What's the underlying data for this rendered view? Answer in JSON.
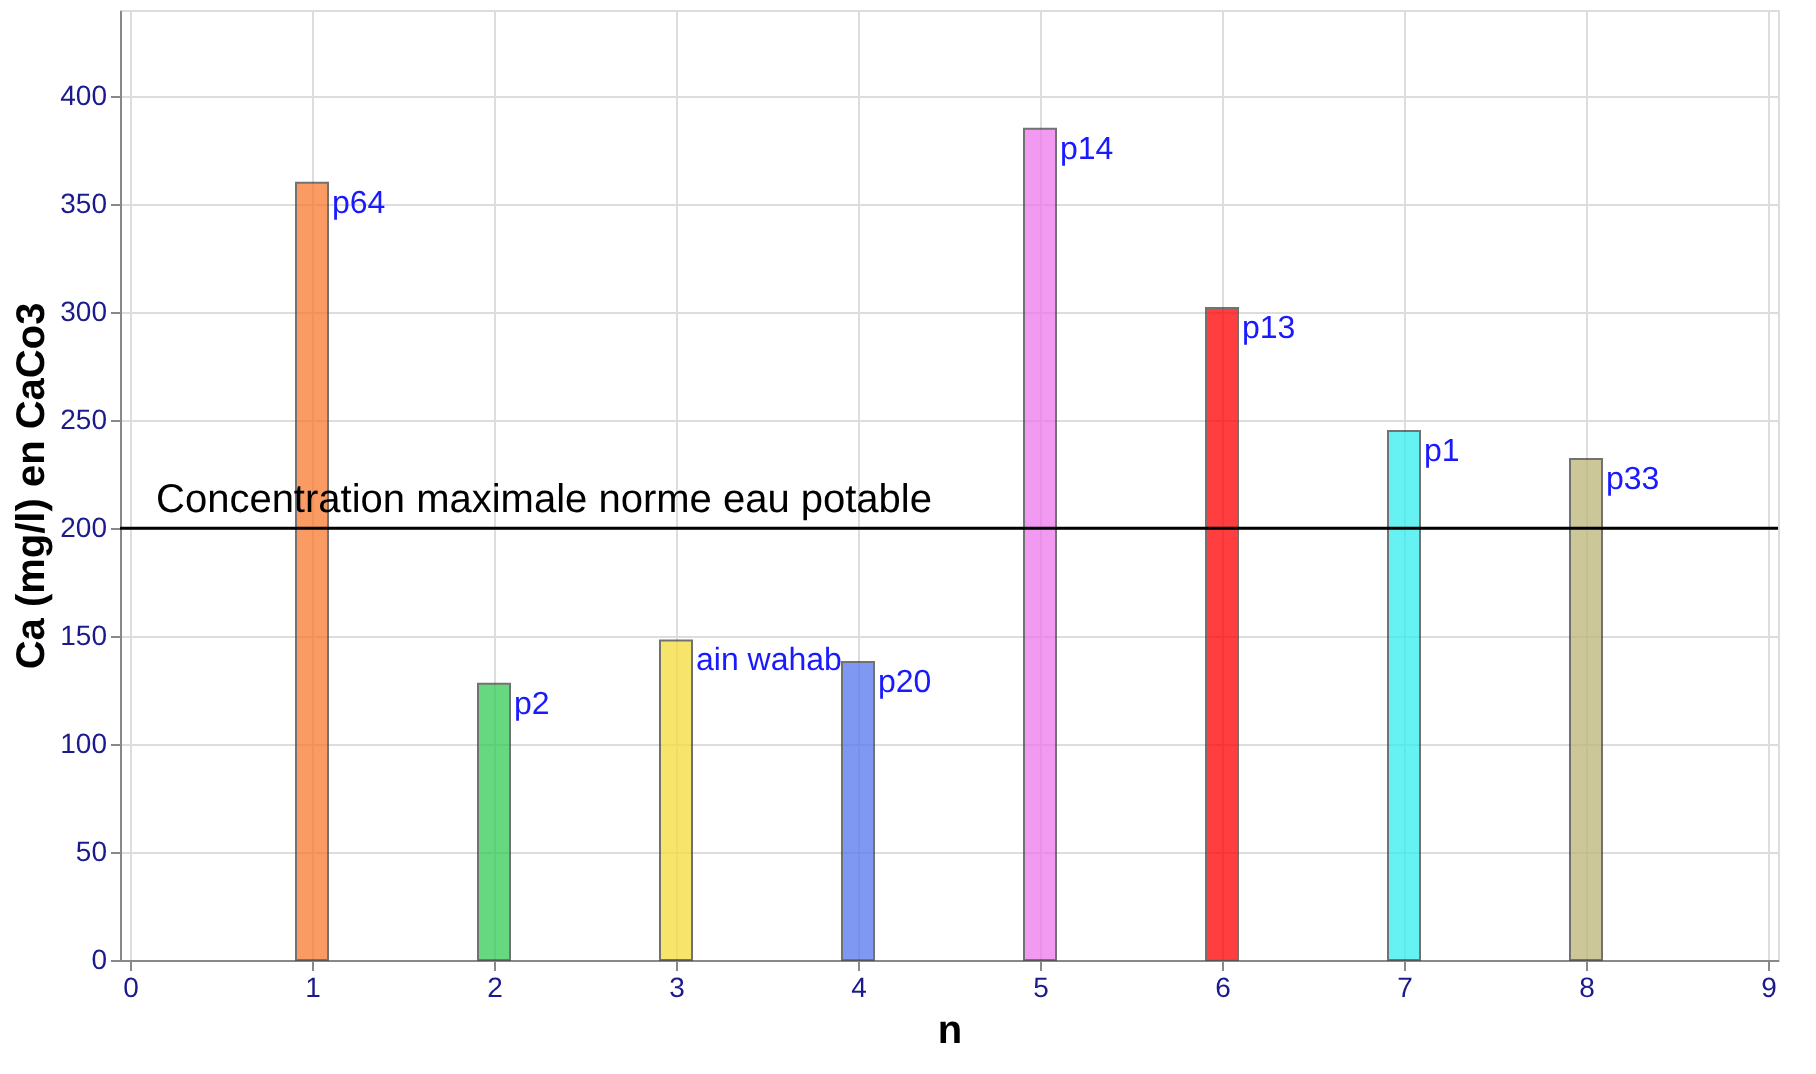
{
  "chart_data": {
    "type": "bar",
    "xlabel": "n",
    "ylabel": "Ca (mg/l) en CaCo3",
    "x": [
      1,
      2,
      3,
      4,
      5,
      6,
      7,
      8
    ],
    "values": [
      360,
      128,
      148,
      138,
      385,
      302,
      245,
      232
    ],
    "colors": [
      "#f97a30",
      "#33cc55",
      "#f5dc3a",
      "#5577ee",
      "#ee77ee",
      "#ff0000",
      "#33eeee",
      "#bbb577"
    ],
    "xlim": [
      0,
      9
    ],
    "xticks": [
      0,
      1,
      2,
      3,
      4,
      5,
      6,
      7,
      8,
      9
    ],
    "ylim": [
      0,
      440
    ],
    "yticks": [
      0,
      50,
      100,
      150,
      200,
      250,
      300,
      350,
      400
    ],
    "grid": true,
    "ref_lines": [
      {
        "axis": "y",
        "value": 200,
        "label": "Concentration maximale  norme eau potable",
        "color": "#000000"
      }
    ],
    "annotations": [
      {
        "text": "p64",
        "x": 1,
        "y": 360
      },
      {
        "text": "p2",
        "x": 2,
        "y": 128
      },
      {
        "text": "ain wahab",
        "x": 3,
        "y": 148
      },
      {
        "text": "p20",
        "x": 4,
        "y": 138
      },
      {
        "text": "p14",
        "x": 5,
        "y": 385
      },
      {
        "text": "p13",
        "x": 6,
        "y": 302
      },
      {
        "text": "p1",
        "x": 7,
        "y": 245
      },
      {
        "text": "p33",
        "x": 8,
        "y": 232
      }
    ]
  }
}
